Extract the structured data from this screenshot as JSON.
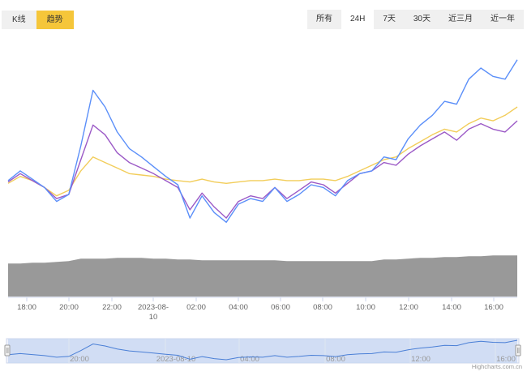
{
  "view_toggle": [
    {
      "label": "K线",
      "active": false
    },
    {
      "label": "趋势",
      "active": true
    }
  ],
  "range_selector": [
    {
      "label": "所有",
      "active": false
    },
    {
      "label": "24H",
      "active": true
    },
    {
      "label": "7天",
      "active": false
    },
    {
      "label": "30天",
      "active": false
    },
    {
      "label": "近三月",
      "active": false
    },
    {
      "label": "近一年",
      "active": false
    }
  ],
  "credit": "Highcharts.com.cn",
  "chart_data": {
    "type": "line",
    "x_ticks": [
      "18:00",
      "20:00",
      "22:00",
      "2023-08-10",
      "02:00",
      "04:00",
      "06:00",
      "08:00",
      "10:00",
      "12:00",
      "14:00",
      "16:00"
    ],
    "navigator_ticks": [
      "20:00",
      "2023-08-10",
      "04:00",
      "08:00",
      "12:00",
      "16:00"
    ],
    "series": [
      {
        "color": "#5b8ff9",
        "values": [
          5,
          12,
          6,
          0,
          -10,
          -5,
          30,
          70,
          58,
          40,
          28,
          22,
          15,
          8,
          2,
          -22,
          -6,
          -18,
          -25,
          -12,
          -8,
          -10,
          0,
          -10,
          -5,
          2,
          0,
          -6,
          5,
          10,
          12,
          22,
          20,
          35,
          45,
          52,
          62,
          60,
          78,
          86,
          80,
          78,
          92
        ]
      },
      {
        "color": "#9b59c6",
        "values": [
          4,
          10,
          5,
          0,
          -8,
          -5,
          20,
          45,
          38,
          25,
          18,
          14,
          10,
          5,
          0,
          -16,
          -4,
          -14,
          -22,
          -10,
          -6,
          -8,
          0,
          -8,
          -2,
          4,
          2,
          -4,
          3,
          10,
          12,
          18,
          16,
          24,
          30,
          35,
          40,
          34,
          42,
          46,
          42,
          40,
          48
        ]
      },
      {
        "color": "#f2cd5a",
        "values": [
          3,
          8,
          5,
          0,
          -6,
          -2,
          12,
          22,
          18,
          14,
          10,
          9,
          8,
          6,
          5,
          4,
          6,
          4,
          3,
          4,
          5,
          5,
          6,
          5,
          5,
          6,
          6,
          5,
          8,
          12,
          16,
          20,
          22,
          28,
          33,
          38,
          42,
          40,
          46,
          50,
          48,
          52,
          58
        ]
      },
      {
        "color": "#999999",
        "type": "area",
        "values": [
          40,
          40,
          41,
          41,
          42,
          43,
          46,
          46,
          46,
          47,
          47,
          47,
          46,
          46,
          45,
          45,
          44,
          44,
          44,
          44,
          44,
          44,
          44,
          43,
          43,
          43,
          43,
          43,
          43,
          43,
          43,
          45,
          45,
          46,
          47,
          47,
          48,
          48,
          49,
          49,
          50,
          50,
          50
        ]
      }
    ]
  }
}
